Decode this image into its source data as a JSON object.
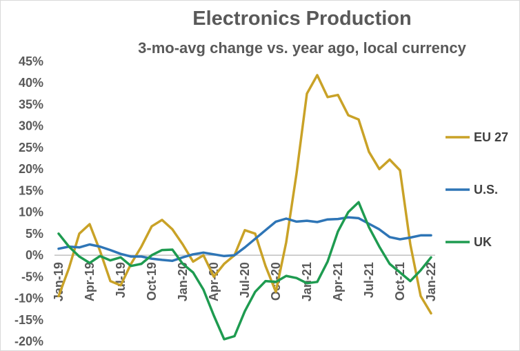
{
  "chart_data": {
    "type": "line",
    "title": "Electronics Production",
    "subtitle": "3-mo-avg change vs. year ago, local currency",
    "xlabel": "",
    "ylabel": "",
    "ylim": [
      -20,
      45
    ],
    "y_ticks": [
      "45%",
      "40%",
      "35%",
      "30%",
      "25%",
      "20%",
      "15%",
      "10%",
      "5%",
      "0%",
      "-5%",
      "-10%",
      "-15%",
      "-20%"
    ],
    "y_tick_values": [
      45,
      40,
      35,
      30,
      25,
      20,
      15,
      10,
      5,
      0,
      -5,
      -10,
      -15,
      -20
    ],
    "x_tick_labels": [
      "Jan-19",
      "Apr-19",
      "Jul-19",
      "Oct-19",
      "Jan-20",
      "Apr-20",
      "Jul-20",
      "Oct-20",
      "Jan-21",
      "Apr-21",
      "Jul-21",
      "Oct-21",
      "Jan-22"
    ],
    "x": [
      "Jan-19",
      "Feb-19",
      "Mar-19",
      "Apr-19",
      "May-19",
      "Jun-19",
      "Jul-19",
      "Aug-19",
      "Sep-19",
      "Oct-19",
      "Nov-19",
      "Dec-19",
      "Jan-20",
      "Feb-20",
      "Mar-20",
      "Apr-20",
      "May-20",
      "Jun-20",
      "Jul-20",
      "Aug-20",
      "Sep-20",
      "Oct-20",
      "Nov-20",
      "Dec-20",
      "Jan-21",
      "Feb-21",
      "Mar-21",
      "Apr-21",
      "May-21",
      "Jun-21",
      "Jul-21",
      "Aug-21",
      "Sep-21",
      "Oct-21",
      "Nov-21",
      "Dec-21",
      "Jan-22"
    ],
    "grid": false,
    "legend_position": "right",
    "series": [
      {
        "name": "EU 27",
        "color": "#C9A227",
        "values": [
          -9.5,
          -3,
          5,
          7.2,
          1,
          -6,
          -7,
          -2,
          2,
          6.7,
          8.2,
          6,
          2.5,
          -1.5,
          0,
          -5,
          -2,
          0,
          5.8,
          5,
          -2.5,
          -8.5,
          3,
          19,
          37.5,
          41.8,
          36.7,
          37.2,
          32.5,
          31.5,
          24,
          20,
          22.2,
          19.7,
          2.5,
          -9.5,
          -13.5
        ]
      },
      {
        "name": "U.S.",
        "color": "#2E75B6",
        "values": [
          1.5,
          2,
          1.8,
          2.5,
          2,
          1.2,
          0.3,
          -0.3,
          -0.3,
          -0.8,
          -1.1,
          -1.3,
          -0.5,
          0.2,
          0.6,
          0.2,
          -0.2,
          0,
          1.8,
          3.8,
          5.8,
          7.8,
          8.5,
          7.8,
          8,
          7.7,
          8.3,
          8.4,
          8.8,
          8.6,
          7.3,
          6,
          4.2,
          3.7,
          4.1,
          4.6,
          4.6
        ]
      },
      {
        "name": "UK",
        "color": "#1E9B50",
        "values": [
          5,
          2,
          -0.3,
          -1.8,
          -0.2,
          -1.2,
          -0.5,
          -2.5,
          -2,
          0,
          1.2,
          1.3,
          -2,
          -4,
          -8,
          -14,
          -19.5,
          -18.8,
          -13,
          -8.5,
          -6,
          -6.2,
          -4.8,
          -5.3,
          -6.5,
          -6.2,
          -1.5,
          5.5,
          10,
          12.3,
          6.5,
          2,
          -2,
          -4,
          -6,
          -3.5,
          -0.5
        ]
      }
    ]
  }
}
